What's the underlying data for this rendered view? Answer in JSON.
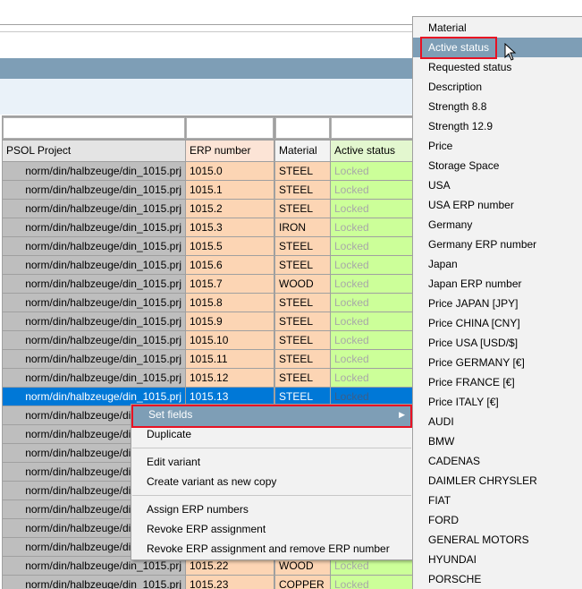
{
  "table": {
    "headers": [
      "PSOL Project",
      "ERP number",
      "Material",
      "Active status"
    ],
    "selected_row": 12,
    "rows": [
      [
        "norm/din/halbzeuge/din_1015.prj",
        "1015.0",
        "STEEL",
        "Locked"
      ],
      [
        "norm/din/halbzeuge/din_1015.prj",
        "1015.1",
        "STEEL",
        "Locked"
      ],
      [
        "norm/din/halbzeuge/din_1015.prj",
        "1015.2",
        "STEEL",
        "Locked"
      ],
      [
        "norm/din/halbzeuge/din_1015.prj",
        "1015.3",
        "IRON",
        "Locked"
      ],
      [
        "norm/din/halbzeuge/din_1015.prj",
        "1015.5",
        "STEEL",
        "Locked"
      ],
      [
        "norm/din/halbzeuge/din_1015.prj",
        "1015.6",
        "STEEL",
        "Locked"
      ],
      [
        "norm/din/halbzeuge/din_1015.prj",
        "1015.7",
        "WOOD",
        "Locked"
      ],
      [
        "norm/din/halbzeuge/din_1015.prj",
        "1015.8",
        "STEEL",
        "Locked"
      ],
      [
        "norm/din/halbzeuge/din_1015.prj",
        "1015.9",
        "STEEL",
        "Locked"
      ],
      [
        "norm/din/halbzeuge/din_1015.prj",
        "1015.10",
        "STEEL",
        "Locked"
      ],
      [
        "norm/din/halbzeuge/din_1015.prj",
        "1015.11",
        "STEEL",
        "Locked"
      ],
      [
        "norm/din/halbzeuge/din_1015.prj",
        "1015.12",
        "STEEL",
        "Locked"
      ],
      [
        "norm/din/halbzeuge/din_1015.prj",
        "1015.13",
        "STEEL",
        "Locked"
      ],
      [
        "norm/din/halbzeuge/din_1015.prj"
      ],
      [
        "norm/din/halbzeuge/din_1015.prj"
      ],
      [
        "norm/din/halbzeuge/din_1015.prj"
      ],
      [
        "norm/din/halbzeuge/din_1015.prj"
      ],
      [
        "norm/din/halbzeuge/din_1015.prj"
      ],
      [
        "norm/din/halbzeuge/din_1015.prj"
      ],
      [
        "norm/din/halbzeuge/din_1015.prj"
      ],
      [
        "norm/din/halbzeuge/din_1015.prj"
      ],
      [
        "norm/din/halbzeuge/din_1015.prj",
        "1015.22",
        "WOOD",
        "Locked"
      ],
      [
        "norm/din/halbzeuge/din_1015.prj",
        "1015.23",
        "COPPER",
        "Locked"
      ]
    ]
  },
  "context_menu": {
    "groups": [
      [
        "Set fields",
        "Duplicate"
      ],
      [
        "Edit variant",
        "Create variant as new copy"
      ],
      [
        "Assign ERP numbers",
        "Revoke ERP assignment",
        "Revoke ERP assignment and remove ERP number"
      ]
    ]
  },
  "submenu": {
    "highlighted": 1,
    "items": [
      "Material",
      "Active status",
      "Requested status",
      "Description",
      "Strength 8.8",
      "Strength 12.9",
      "Price",
      "Storage Space",
      "USA",
      "USA ERP number",
      "Germany",
      "Germany ERP number",
      "Japan",
      "Japan ERP number",
      "Price JAPAN [JPY]",
      "Price CHINA [CNY]",
      "Price USA [USD/$]",
      "Price GERMANY [€]",
      "Price FRANCE [€]",
      "Price ITALY [€]",
      "AUDI",
      "BMW",
      "CADENAS",
      "DAIMLER CHRYSLER",
      "FIAT",
      "FORD",
      "GENERAL MOTORS",
      "HYUNDAI",
      "PORSCHE"
    ]
  }
}
